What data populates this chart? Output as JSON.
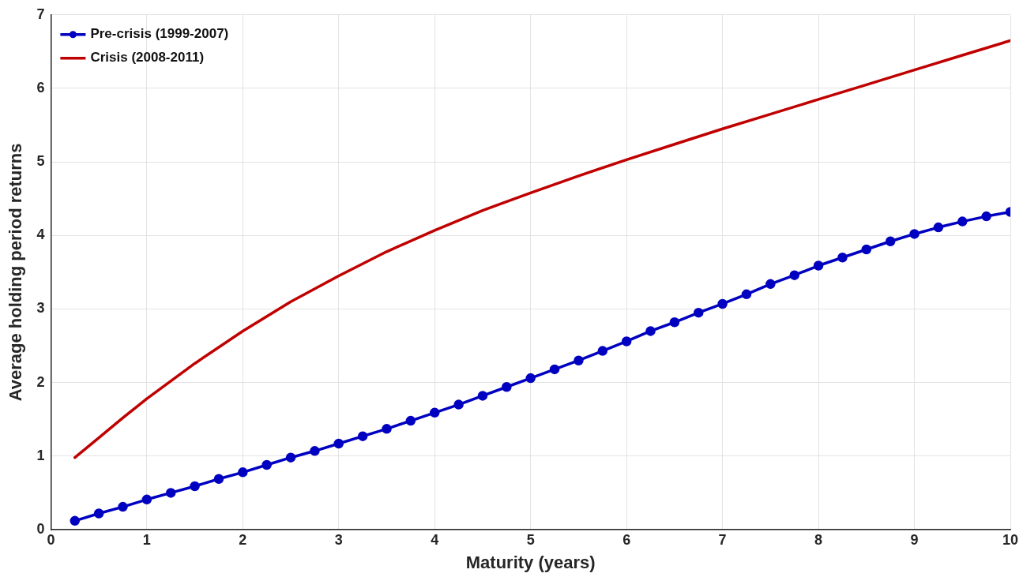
{
  "chart_data": {
    "type": "line",
    "xlabel": "Maturity (years)",
    "ylabel": "Average holding period returns",
    "xlim": [
      0,
      10
    ],
    "xticks": [
      0,
      1,
      2,
      3,
      4,
      5,
      6,
      7,
      8,
      9,
      10
    ],
    "ylim": [
      0,
      7
    ],
    "yticks": [
      0,
      1,
      2,
      3,
      4,
      5,
      6,
      7
    ],
    "grid": true,
    "legend": "top left",
    "line_style": "solid",
    "series": [
      {
        "name": "Pre-crisis (1999-2007)",
        "color": "#0000c0",
        "marker": "circle",
        "x": [
          0.25,
          0.5,
          0.75,
          1,
          1.25,
          1.5,
          1.75,
          2,
          2.25,
          2.5,
          2.75,
          3,
          3.25,
          3.5,
          3.75,
          4,
          4.25,
          4.5,
          4.75,
          5,
          5.25,
          5.5,
          5.75,
          6,
          6.25,
          6.5,
          6.75,
          7,
          7.25,
          7.5,
          7.75,
          8,
          8.25,
          8.5,
          8.75,
          9,
          9.25,
          9.5,
          9.75,
          10
        ],
        "values": [
          0.12,
          0.22,
          0.31,
          0.41,
          0.5,
          0.59,
          0.69,
          0.78,
          0.88,
          0.98,
          1.07,
          1.17,
          1.27,
          1.37,
          1.48,
          1.59,
          1.7,
          1.82,
          1.94,
          2.06,
          2.18,
          2.3,
          2.43,
          2.56,
          2.7,
          2.82,
          2.95,
          3.07,
          3.2,
          3.34,
          3.46,
          3.59,
          3.7,
          3.81,
          3.92,
          4.02,
          4.11,
          4.19,
          4.26,
          4.32
        ]
      },
      {
        "name": "Crisis (2008-2011)",
        "color": "#c00000",
        "marker": "none",
        "x": [
          0.25,
          0.5,
          0.75,
          1,
          1.5,
          2,
          2.5,
          3,
          3.5,
          4,
          4.5,
          5,
          5.5,
          6,
          6.5,
          7,
          7.5,
          8,
          8.5,
          9,
          9.5,
          10
        ],
        "values": [
          0.98,
          1.25,
          1.52,
          1.78,
          2.26,
          2.7,
          3.1,
          3.45,
          3.78,
          4.07,
          4.34,
          4.58,
          4.81,
          5.03,
          5.24,
          5.45,
          5.65,
          5.85,
          6.05,
          6.25,
          6.45,
          6.65
        ]
      }
    ]
  }
}
